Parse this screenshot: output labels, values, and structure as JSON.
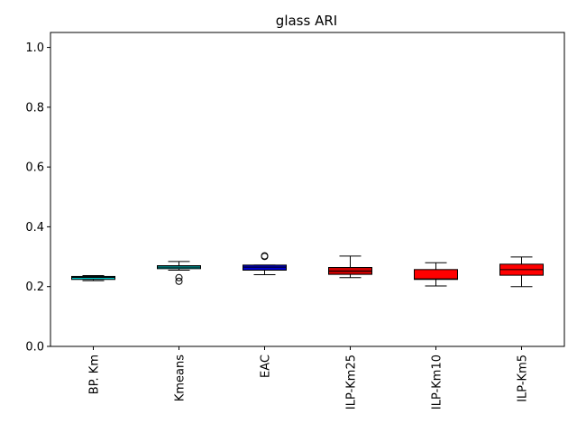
{
  "chart_data": {
    "type": "box",
    "title": "glass ARI",
    "xlabel": "",
    "ylabel": "",
    "ylim": [
      0,
      1.05
    ],
    "yticks": [
      0.0,
      0.2,
      0.4,
      0.6,
      0.8,
      1.0
    ],
    "ytick_labels": [
      "0.0",
      "0.2",
      "0.4",
      "0.6",
      "0.8",
      "1.0"
    ],
    "grid": false,
    "legend": "none",
    "boxes": [
      {
        "label": "BP. Km",
        "color": "#00cccc",
        "whisker_low": 0.22,
        "q1": 0.224,
        "median": 0.231,
        "q3": 0.234,
        "whisker_high": 0.237,
        "outliers": []
      },
      {
        "label": "Kmeans",
        "color": "#00bfbf",
        "whisker_low": 0.255,
        "q1": 0.26,
        "median": 0.265,
        "q3": 0.27,
        "whisker_high": 0.284,
        "outliers": [
          0.23,
          0.218
        ]
      },
      {
        "label": "EAC",
        "color": "#0000cc",
        "whisker_low": 0.24,
        "q1": 0.255,
        "median": 0.265,
        "q3": 0.272,
        "whisker_high": 0.272,
        "outliers": [
          0.301,
          0.303
        ]
      },
      {
        "label": "ILP-Km25",
        "color": "#cc0000",
        "whisker_low": 0.23,
        "q1": 0.241,
        "median": 0.252,
        "q3": 0.264,
        "whisker_high": 0.302,
        "outliers": []
      },
      {
        "label": "ILP-Km10",
        "color": "#ff0000",
        "whisker_low": 0.202,
        "q1": 0.224,
        "median": 0.226,
        "q3": 0.257,
        "whisker_high": 0.28,
        "outliers": []
      },
      {
        "label": "ILP-Km5",
        "color": "#ff0000",
        "whisker_low": 0.2,
        "q1": 0.238,
        "median": 0.257,
        "q3": 0.275,
        "whisker_high": 0.299,
        "outliers": []
      }
    ]
  }
}
